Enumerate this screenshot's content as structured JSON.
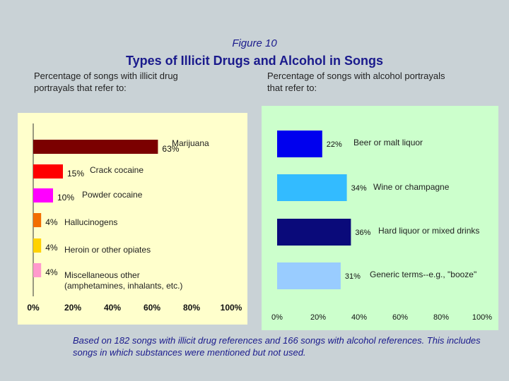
{
  "figure_label": "Figure 10",
  "title": "Types of Illicit Drugs and Alcohol in Songs",
  "left_subtitle": "Percentage of songs with illicit drug portrayals that refer to:",
  "right_subtitle": "Percentage of songs with alcohol portrayals that refer to:",
  "footnote": "Based on 182 songs with illicit drug references and 166 songs with alcohol references.  This includes songs in which substances were mentioned but not used.",
  "chart_data": [
    {
      "type": "bar",
      "orientation": "horizontal",
      "title": "Percentage of songs with illicit drug portrayals that refer to:",
      "categories": [
        "Marijuana",
        "Crack cocaine",
        "Powder cocaine",
        "Hallucinogens",
        "Heroin or other opiates",
        "Miscellaneous other (amphetamines, inhalants, etc.)"
      ],
      "values": [
        63,
        15,
        10,
        4,
        4,
        4
      ],
      "value_labels": [
        "63%",
        "15%",
        "10%",
        "4%",
        "4%",
        "4%"
      ],
      "colors": [
        "#7b0000",
        "#ff0000",
        "#ff00ff",
        "#f26d00",
        "#ffd200",
        "#ff99cc"
      ],
      "xlim": [
        0,
        100
      ],
      "xticks": [
        0,
        20,
        40,
        60,
        80,
        100
      ],
      "xtick_labels": [
        "0%",
        "20%",
        "40%",
        "60%",
        "80%",
        "100%"
      ]
    },
    {
      "type": "bar",
      "orientation": "horizontal",
      "title": "Percentage of songs with alcohol portrayals that refer to:",
      "categories": [
        "Beer or malt liquor",
        "Wine or champagne",
        "Hard liquor or mixed drinks",
        "Generic terms--e.g., \"booze\""
      ],
      "values": [
        22,
        34,
        36,
        31
      ],
      "value_labels": [
        "22%",
        "34%",
        "36%",
        "31%"
      ],
      "colors": [
        "#0000ee",
        "#33bbff",
        "#0a0a7a",
        "#99ccff"
      ],
      "xlim": [
        0,
        100
      ],
      "xticks": [
        0,
        20,
        40,
        60,
        80,
        100
      ],
      "xtick_labels": [
        "0%",
        "20%",
        "40%",
        "60%",
        "80%",
        "100%"
      ]
    }
  ]
}
